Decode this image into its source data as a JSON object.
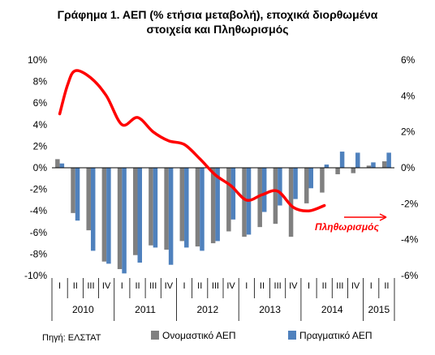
{
  "title_line1": "Γράφημα 1. ΑΕΠ (% ετήσια μεταβολή), εποχικά διορθωμένα",
  "title_line2": "στοιχεία και Πληθωρισμός",
  "source": "Πηγή: ΕΛΣΤΑΤ",
  "chart_data": {
    "type": "bar",
    "title": "Γράφημα 1. ΑΕΠ (% ετήσια μεταβολή), εποχικά διορθωμένα στοιχεία και Πληθωρισμός",
    "quarters": [
      "I",
      "II",
      "III",
      "IV",
      "I",
      "II",
      "III",
      "IV",
      "I",
      "II",
      "III",
      "IV",
      "I",
      "II",
      "III",
      "IV",
      "I",
      "II",
      "III",
      "IV",
      "I",
      "II"
    ],
    "years": [
      {
        "label": "2010",
        "count": 4
      },
      {
        "label": "2011",
        "count": 4
      },
      {
        "label": "2012",
        "count": 4
      },
      {
        "label": "2013",
        "count": 4
      },
      {
        "label": "2014",
        "count": 4
      },
      {
        "label": "2015",
        "count": 2
      }
    ],
    "left_axis": {
      "min": -10,
      "max": 10,
      "step": 2,
      "unit": "%"
    },
    "right_axis": {
      "min": -6,
      "max": 6,
      "step": 2,
      "unit": "%"
    },
    "series": [
      {
        "name": "Ονομαστικό ΑΕΠ",
        "color": "#808080",
        "axis": "left",
        "values": [
          0.8,
          -4.2,
          -5.8,
          -8.7,
          -9.4,
          -8.1,
          -7.2,
          -7.6,
          -6.8,
          -7.3,
          -7.0,
          -5.9,
          -6.4,
          -5.5,
          -5.2,
          -6.4,
          -3.3,
          -2.3,
          -0.6,
          -0.5,
          0.2,
          0.6
        ]
      },
      {
        "name": "Πραγματικό ΑΕΠ",
        "color": "#4f81bd",
        "axis": "left",
        "values": [
          0.4,
          -4.9,
          -7.7,
          -8.9,
          -9.8,
          -8.8,
          -7.4,
          -9.0,
          -7.4,
          -7.7,
          -6.8,
          -4.8,
          -6.2,
          -4.1,
          -3.5,
          -2.9,
          -1.9,
          0.3,
          1.5,
          1.4,
          0.5,
          1.4
        ]
      },
      {
        "name": "Πληθωρισμός",
        "color": "#ff0000",
        "axis": "right",
        "type": "line",
        "points": [
          [
            0,
            3.0
          ],
          [
            0.5,
            4.6
          ],
          [
            1,
            5.4
          ],
          [
            2,
            5.0
          ],
          [
            3,
            4.0
          ],
          [
            4,
            2.4
          ],
          [
            5,
            2.8
          ],
          [
            6,
            2.0
          ],
          [
            7,
            1.5
          ],
          [
            8,
            1.3
          ],
          [
            9,
            0.5
          ],
          [
            10,
            -0.4
          ],
          [
            11,
            -1.0
          ],
          [
            12,
            -1.8
          ],
          [
            13,
            -1.5
          ],
          [
            14,
            -1.3
          ],
          [
            15,
            -2.2
          ],
          [
            16,
            -2.4
          ],
          [
            17,
            -2.1
          ]
        ]
      }
    ],
    "annotation": "Πληθωρισμός",
    "grid": false,
    "legend_position": "bottom"
  }
}
